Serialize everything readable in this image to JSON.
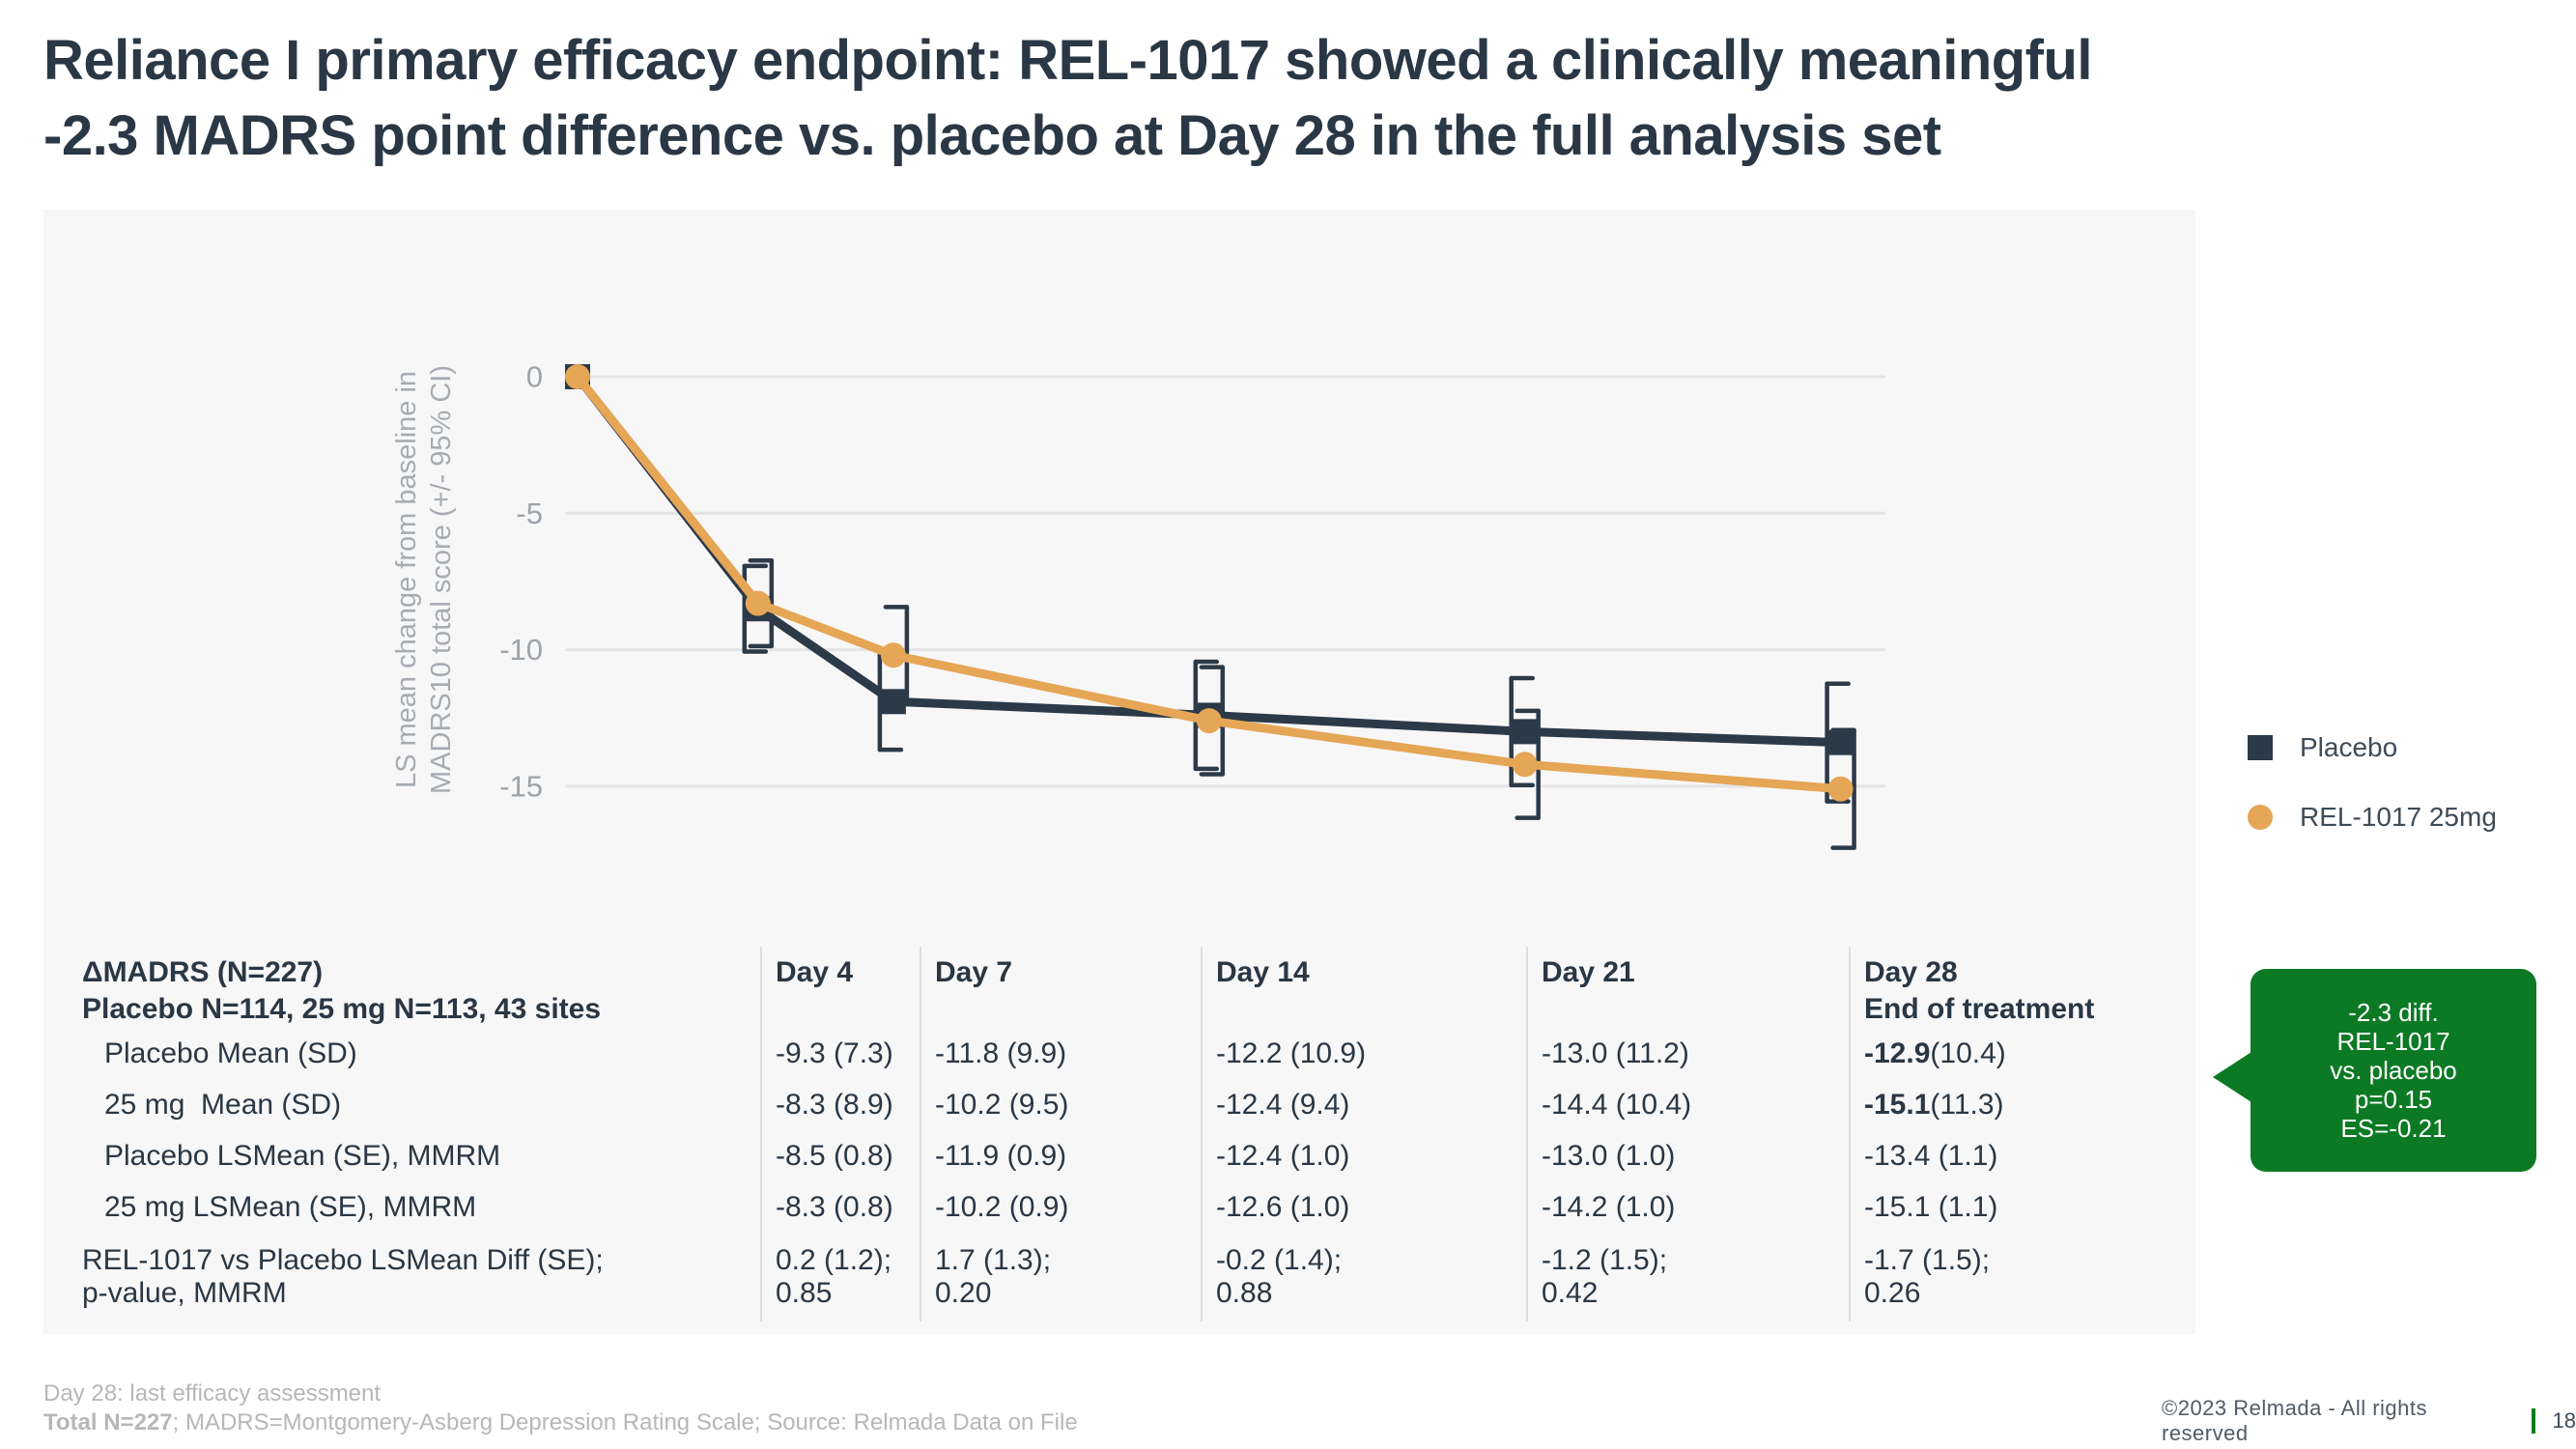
{
  "title": {
    "lines": [
      "Reliance I primary efficacy endpoint: REL-1017 showed a clinically meaningful",
      "-2.3 MADRS point difference vs. placebo at Day 28 in the full analysis set"
    ]
  },
  "colors": {
    "navy": "#2c3a48",
    "orange": "#e5a656",
    "green": "#0c7a24",
    "panel_background": "#f7f7f8",
    "gridline": "#e4e4e6"
  },
  "chart_data": {
    "type": "line",
    "x_unit": "day",
    "x": [
      0,
      4,
      7,
      14,
      21,
      28
    ],
    "series": [
      {
        "name": "Placebo",
        "marker": "square",
        "color": "#2c3a48",
        "values": [
          0,
          -8.5,
          -11.9,
          -12.4,
          -13.0,
          -13.4
        ],
        "se": [
          0,
          0.8,
          0.9,
          1.0,
          1.0,
          1.1
        ]
      },
      {
        "name": "REL-1017 25mg",
        "marker": "circle",
        "color": "#e5a656",
        "values": [
          0,
          -8.3,
          -10.2,
          -12.6,
          -14.2,
          -15.1
        ],
        "se": [
          0,
          0.8,
          0.9,
          1.0,
          1.0,
          1.1
        ]
      }
    ],
    "error_bars": "95% CI = value ± 1.96×SE, bracket style",
    "ci_multiplier": 1.96,
    "ylabel_lines": [
      "LS mean change from baseline in",
      "MADRS10 total score (+/- 95% CI)"
    ],
    "yticks": [
      0,
      -5,
      -10,
      -15
    ],
    "ylim": [
      -18,
      1.5
    ],
    "grid": true,
    "legend_position": "right"
  },
  "table": {
    "header": {
      "title_line1": "ΔMADRS (N=227)",
      "title_line2": "Placebo N=114, 25 mg N=113, 43 sites",
      "day_columns": [
        "Day 4",
        "Day 7",
        "Day 14",
        "Day 21",
        "Day 28"
      ],
      "day28_subtitle": "End of treatment"
    },
    "rows": [
      {
        "label": "Placebo Mean (SD)",
        "indent": true,
        "cells": [
          "-9.3 (7.3)",
          "-11.8 (9.9)",
          "-12.2 (10.9)",
          "-13.0 (11.2)",
          "-12.9 (10.4)"
        ],
        "bold_value_in_last": true
      },
      {
        "label": "25 mg  Mean (SD)",
        "indent": true,
        "cells": [
          "-8.3 (8.9)",
          "-10.2 (9.5)",
          "-12.4 (9.4)",
          "-14.4 (10.4)",
          "-15.1 (11.3)"
        ],
        "bold_value_in_last": true
      },
      {
        "label": "Placebo LSMean (SE), MMRM",
        "indent": true,
        "cells": [
          "-8.5 (0.8)",
          "-11.9 (0.9)",
          "-12.4 (1.0)",
          "-13.0 (1.0)",
          "-13.4 (1.1)"
        ],
        "bold_value_in_last": false
      },
      {
        "label": "25 mg LSMean (SE), MMRM",
        "indent": true,
        "cells": [
          "-8.3 (0.8)",
          "-10.2 (0.9)",
          "-12.6 (1.0)",
          "-14.2 (1.0)",
          "-15.1 (1.1)"
        ],
        "bold_value_in_last": false
      },
      {
        "label_line1": "REL-1017 vs Placebo LSMean Diff (SE);",
        "label_line2": "p-value, MMRM",
        "cells_line1": [
          "0.2 (1.2);",
          "1.7 (1.3);",
          "-0.2 (1.4);",
          "-1.2 (1.5);",
          "-1.7 (1.5);"
        ],
        "cells_line2": [
          "0.85",
          "0.20",
          "0.88",
          "0.42",
          "0.26"
        ]
      }
    ]
  },
  "callout": {
    "lines": [
      "-2.3 diff.",
      "REL-1017",
      "vs. placebo",
      "p=0.15",
      "ES=-0.21"
    ]
  },
  "footnotes": {
    "line1": "Day 28: last efficacy assessment",
    "line2_bold": "Total N=227",
    "line2_rest": "; MADRS=Montgomery-Asberg Depression Rating Scale; Source: Relmada Data on File"
  },
  "footer": {
    "copyright": "©2023 Relmada - All rights reserved",
    "page_number": "18"
  }
}
